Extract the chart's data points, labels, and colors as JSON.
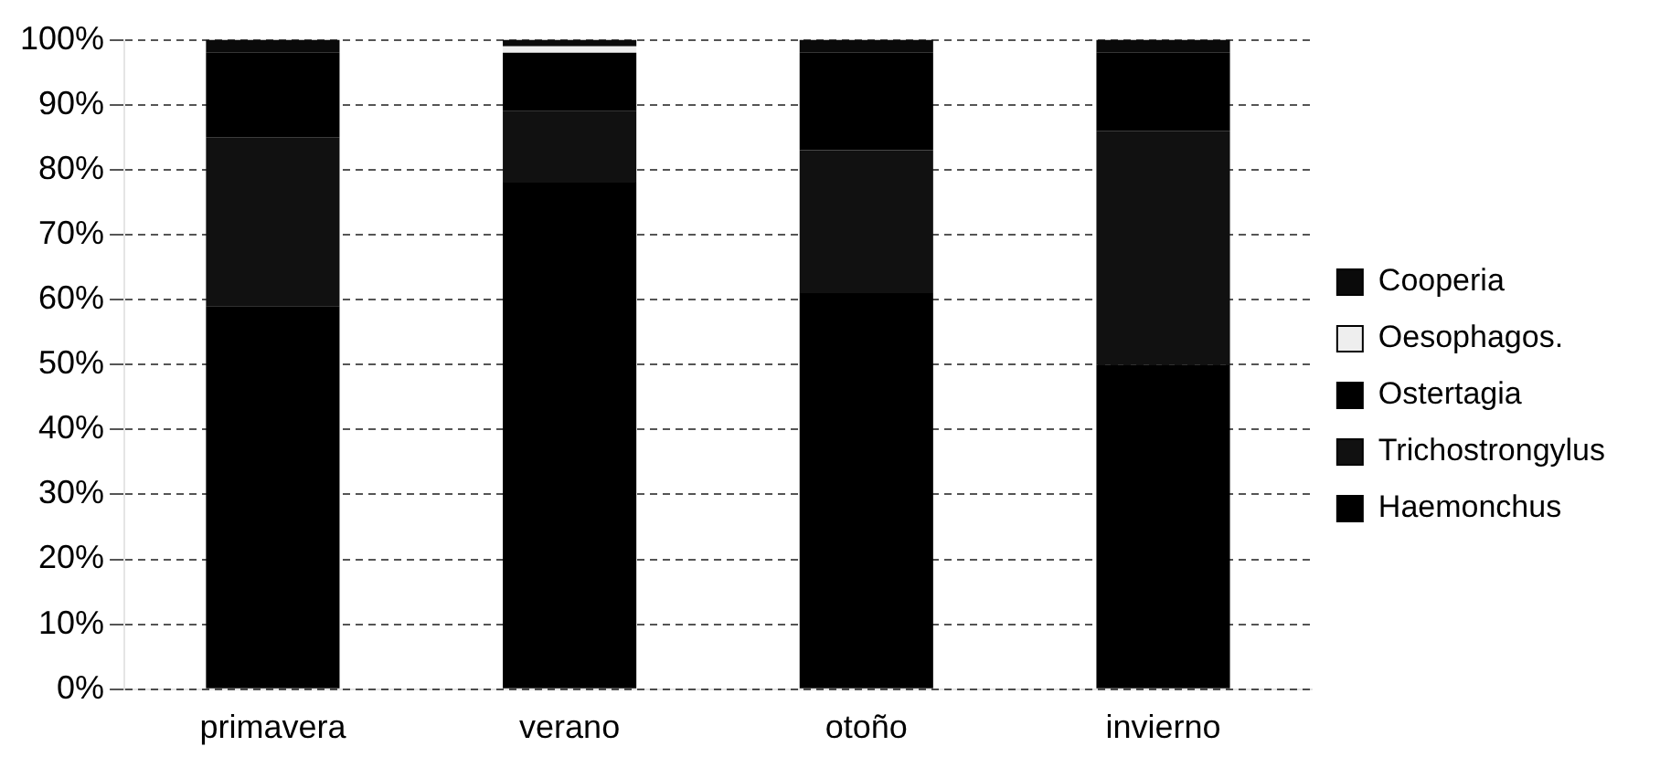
{
  "chart_data": {
    "type": "bar",
    "stacked": true,
    "categories": [
      "primavera",
      "verano",
      "otoño",
      "invierno"
    ],
    "series": [
      {
        "name": "Haemonchus",
        "color": "#000000",
        "values": [
          59,
          78,
          61,
          50
        ]
      },
      {
        "name": "Trichostrongylus",
        "color": "#111111",
        "values": [
          26,
          11,
          22,
          36
        ]
      },
      {
        "name": "Ostertagia",
        "color": "#000000",
        "values": [
          13,
          9,
          15,
          12
        ]
      },
      {
        "name": "Oesophagos.",
        "color": "#eeeeee",
        "values": [
          0,
          1,
          0,
          0
        ]
      },
      {
        "name": "Cooperia",
        "color": "#0a0a0a",
        "values": [
          2,
          1,
          2,
          2
        ]
      }
    ],
    "ylim": [
      0,
      100
    ],
    "yticks": [
      {
        "value": 0,
        "label": "0%"
      },
      {
        "value": 10,
        "label": "10%"
      },
      {
        "value": 20,
        "label": "20%"
      },
      {
        "value": 30,
        "label": "30%"
      },
      {
        "value": 40,
        "label": "40%"
      },
      {
        "value": 50,
        "label": "50%"
      },
      {
        "value": 60,
        "label": "60%"
      },
      {
        "value": 70,
        "label": "70%"
      },
      {
        "value": 80,
        "label": "80%"
      },
      {
        "value": 90,
        "label": "90%"
      },
      {
        "value": 100,
        "label": "100%"
      }
    ],
    "grid": "y",
    "legend": "right"
  }
}
